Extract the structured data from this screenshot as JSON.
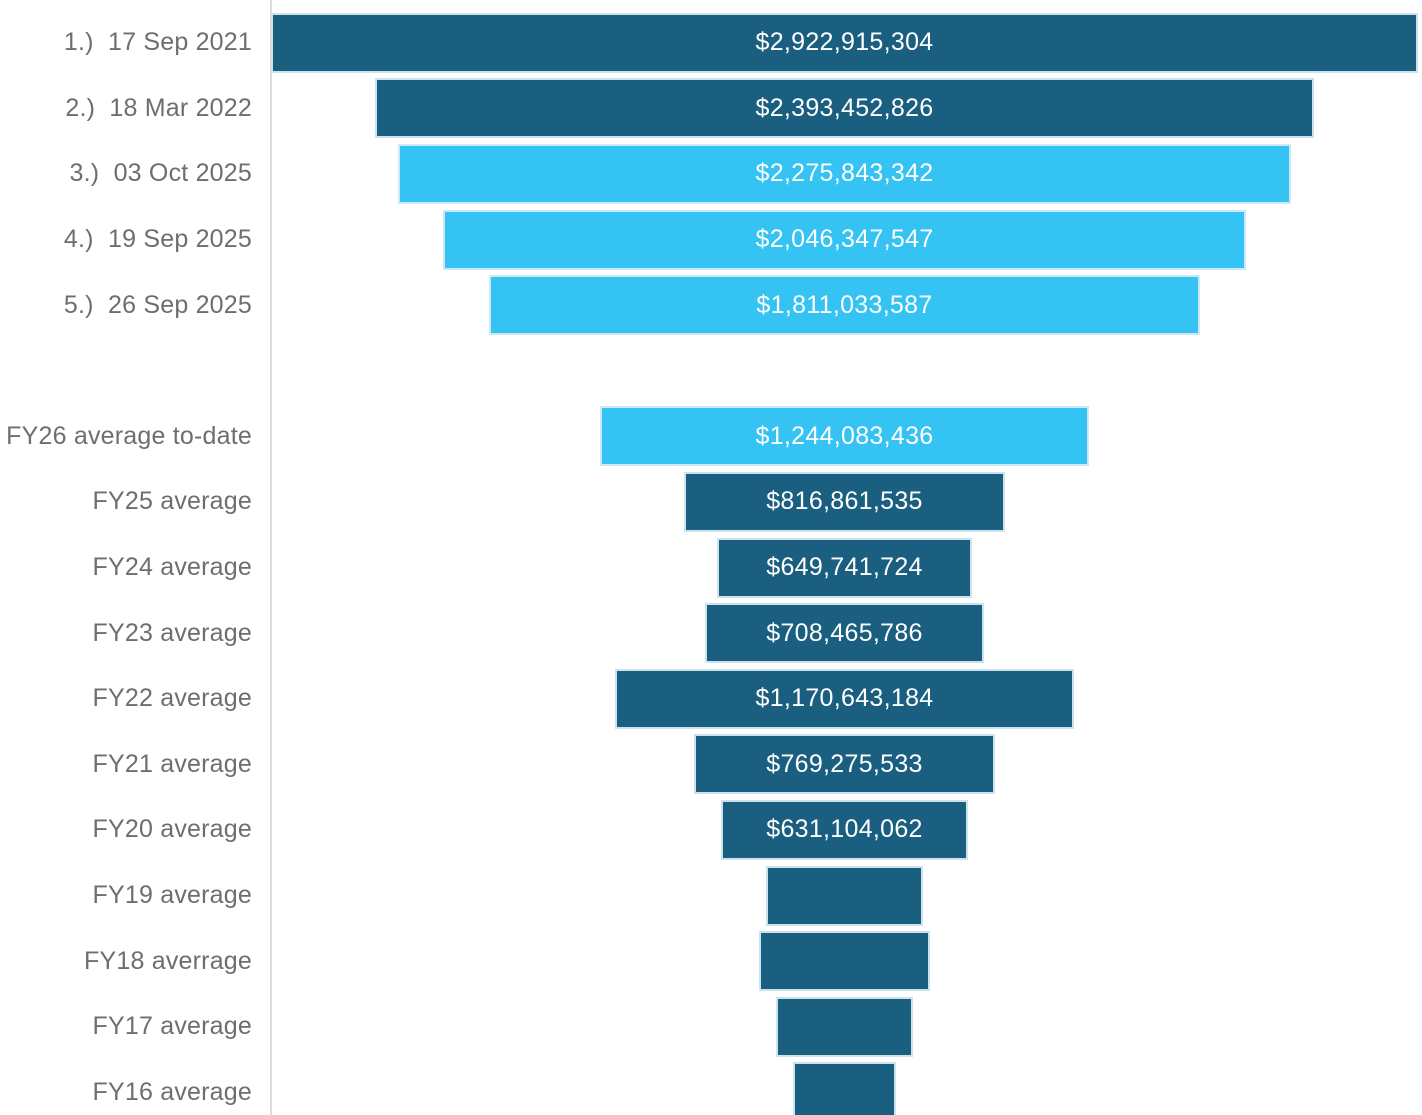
{
  "chart_data": {
    "type": "bar",
    "subtype": "horizontal-centered-funnel",
    "title": "",
    "xlabel": "",
    "ylabel": "",
    "unit": "USD",
    "max_value": 2922915304,
    "layout": {
      "legend": false,
      "grid": false,
      "category_axis_side": "left",
      "bars_centered": true
    },
    "colors": {
      "dark_blue": "#1a5e80",
      "light_blue": "#34c3f3",
      "axis_line": "#dcdcdc",
      "label_text": "#6e6e6e",
      "value_text": "#ffffff"
    },
    "rows": [
      {
        "label": "1.)  17 Sep 2021",
        "value": 2922915304,
        "value_label": "$2,922,915,304",
        "color": "dark_blue",
        "estimated": false,
        "spacer": false
      },
      {
        "label": "2.)  18 Mar 2022",
        "value": 2393452826,
        "value_label": "$2,393,452,826",
        "color": "dark_blue",
        "estimated": false,
        "spacer": false
      },
      {
        "label": "3.)  03 Oct 2025",
        "value": 2275843342,
        "value_label": "$2,275,843,342",
        "color": "light_blue",
        "estimated": false,
        "spacer": false
      },
      {
        "label": "4.)  19 Sep 2025",
        "value": 2046347547,
        "value_label": "$2,046,347,547",
        "color": "light_blue",
        "estimated": false,
        "spacer": false
      },
      {
        "label": "5.)  26 Sep 2025",
        "value": 1811033587,
        "value_label": "$1,811,033,587",
        "color": "light_blue",
        "estimated": false,
        "spacer": false
      },
      {
        "label": "",
        "value": null,
        "value_label": "",
        "color": null,
        "estimated": false,
        "spacer": true
      },
      {
        "label": "FY26 average to-date",
        "value": 1244083436,
        "value_label": "$1,244,083,436",
        "color": "light_blue",
        "estimated": false,
        "spacer": false
      },
      {
        "label": "FY25 average",
        "value": 816861535,
        "value_label": "$816,861,535",
        "color": "dark_blue",
        "estimated": false,
        "spacer": false
      },
      {
        "label": "FY24 average",
        "value": 649741724,
        "value_label": "$649,741,724",
        "color": "dark_blue",
        "estimated": false,
        "spacer": false
      },
      {
        "label": "FY23 average",
        "value": 708465786,
        "value_label": "$708,465,786",
        "color": "dark_blue",
        "estimated": false,
        "spacer": false
      },
      {
        "label": "FY22 average",
        "value": 1170643184,
        "value_label": "$1,170,643,184",
        "color": "dark_blue",
        "estimated": false,
        "spacer": false
      },
      {
        "label": "FY21 average",
        "value": 769275533,
        "value_label": "$769,275,533",
        "color": "dark_blue",
        "estimated": false,
        "spacer": false
      },
      {
        "label": "FY20 average",
        "value": 631104062,
        "value_label": "$631,104,062",
        "color": "dark_blue",
        "estimated": false,
        "spacer": false
      },
      {
        "label": "FY19 average",
        "value": 400000000,
        "value_label": "",
        "color": "dark_blue",
        "estimated": true,
        "spacer": false
      },
      {
        "label": "FY18 averrage",
        "value": 438000000,
        "value_label": "",
        "color": "dark_blue",
        "estimated": true,
        "spacer": false
      },
      {
        "label": "FY17 average",
        "value": 349000000,
        "value_label": "",
        "color": "dark_blue",
        "estimated": true,
        "spacer": false
      },
      {
        "label": "FY16 average",
        "value": 262000000,
        "value_label": "",
        "color": "dark_blue",
        "estimated": true,
        "spacer": false
      }
    ]
  }
}
